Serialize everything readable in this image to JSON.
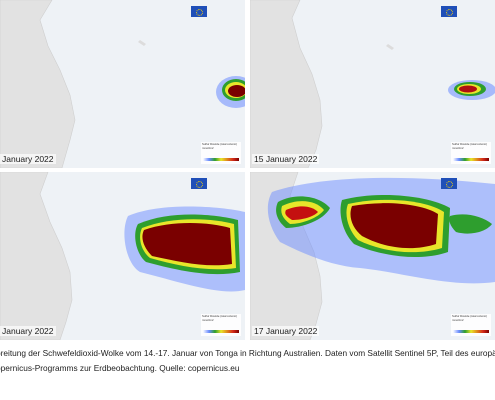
{
  "panels": [
    {
      "date": "January 2022"
    },
    {
      "date": "15 January 2022"
    },
    {
      "date": "January 2022"
    },
    {
      "date": "17 January 2022"
    }
  ],
  "legend": {
    "title": "Sulfur Dioxide (total column)",
    "unit": "mmol/m2"
  },
  "caption": {
    "line1": "breitung der Schwefeldioxid-Wolke vom 14.-17. Januar von Tonga in Richtung Australien. Daten vom Satellit Sentinel 5P, Teil des europäis",
    "line2": "opernicus-Programms zur Erdbeobachtung. Quelle: copernicus.eu"
  },
  "colors": {
    "ocean": "#eef2f6",
    "land": "#e2e2e2",
    "so2_low": "#6b8cff",
    "so2_mid": "#2e9e2e",
    "so2_high": "#7a0000"
  }
}
